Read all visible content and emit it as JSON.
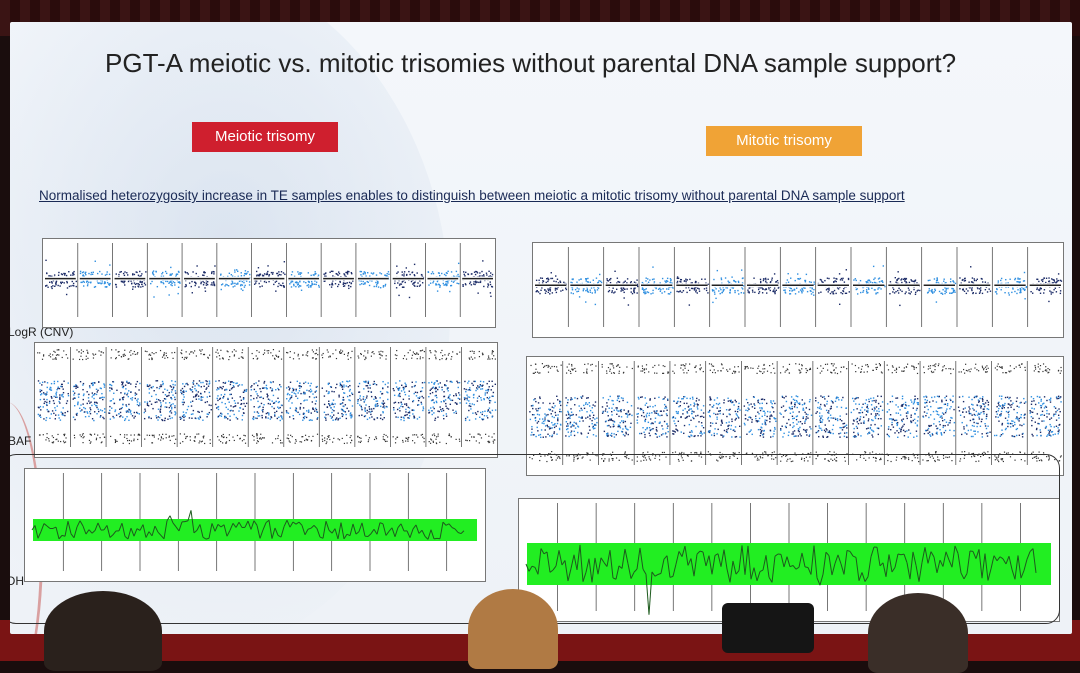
{
  "slide": {
    "title": "PGT-A meiotic vs. mitotic trisomies without parental DNA sample support?",
    "badges": {
      "meiotic": "Meiotic trisomy",
      "mitotic": "Mitotic trisomy"
    },
    "subtitle": "Normalised heterozygosity increase in TE samples enables to distinguish between meiotic a mitotic trisomy without parental DNA sample support",
    "row_labels": {
      "logr": "LogR (CNV)",
      "baf": "BAF",
      "oh": "OH"
    },
    "colors": {
      "red_badge": "#cf1f2e",
      "orange_badge": "#f0a336",
      "green_band": "#22ee22",
      "scatter_light": "#2f8fe0",
      "scatter_dark": "#1a2a66"
    }
  }
}
